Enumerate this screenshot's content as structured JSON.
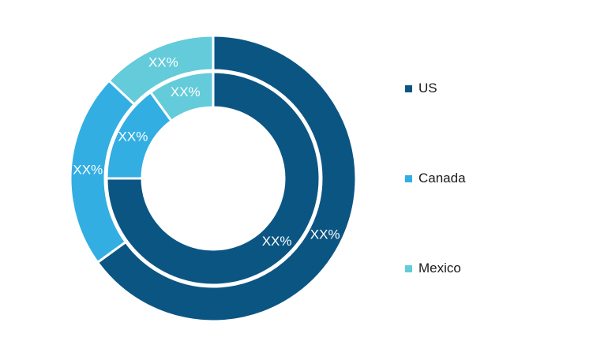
{
  "chart_data": {
    "type": "donut",
    "categories": [
      "US",
      "Canada",
      "Mexico"
    ],
    "colors": [
      "#0b5583",
      "#32aee3",
      "#63cbd9"
    ],
    "series": [
      {
        "ring": "outer",
        "values": [
          65,
          22,
          13
        ],
        "labels": [
          "XX%",
          "XX%",
          "XX%"
        ]
      },
      {
        "ring": "inner",
        "values": [
          75,
          15,
          10
        ],
        "labels": [
          "XX%",
          "XX%",
          "XX%"
        ]
      }
    ],
    "legend": {
      "position": "right",
      "items": [
        "US",
        "Canada",
        "Mexico"
      ]
    }
  }
}
